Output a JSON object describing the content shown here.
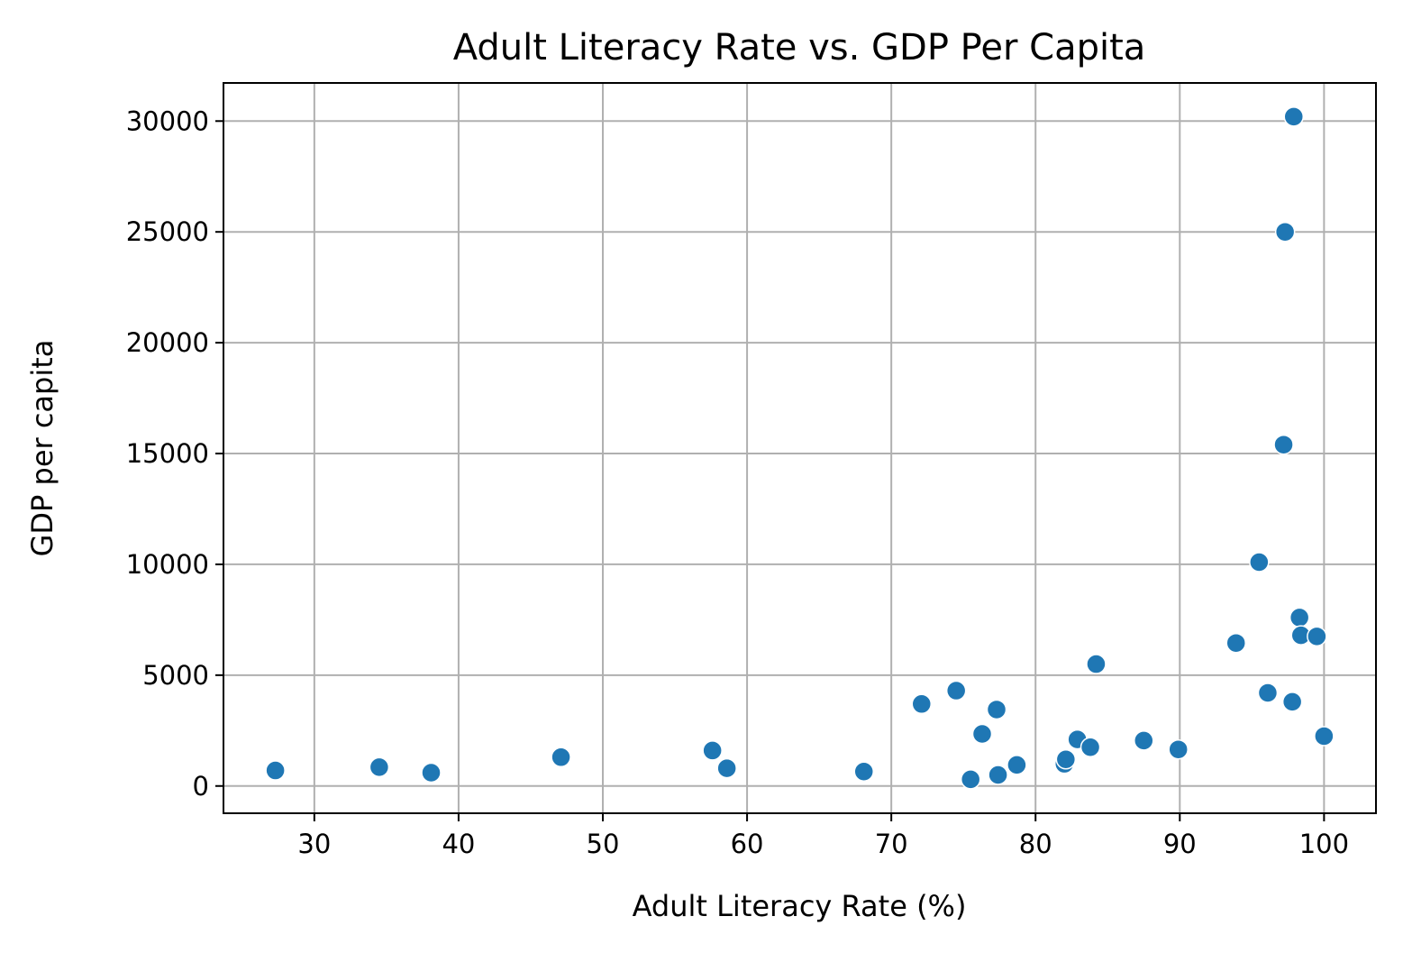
{
  "colors": {
    "point": "#1f77b4",
    "grid": "#b0b0b0",
    "axes": "#000000",
    "background": "#ffffff"
  },
  "chart_data": {
    "type": "scatter",
    "title": "Adult Literacy Rate vs. GDP Per Capita",
    "xlabel": "Adult Literacy Rate (%)",
    "ylabel": "GDP per capita",
    "xlim": [
      23.7,
      103.6
    ],
    "ylim": [
      -1230,
      31720
    ],
    "xticks": [
      30,
      40,
      50,
      60,
      70,
      80,
      90,
      100
    ],
    "yticks": [
      0,
      5000,
      10000,
      15000,
      20000,
      25000,
      30000
    ],
    "grid": true,
    "legend": "none",
    "points": [
      {
        "x": 27.3,
        "y": 700
      },
      {
        "x": 34.5,
        "y": 850
      },
      {
        "x": 38.1,
        "y": 600
      },
      {
        "x": 47.1,
        "y": 1300
      },
      {
        "x": 57.6,
        "y": 1600
      },
      {
        "x": 58.6,
        "y": 800
      },
      {
        "x": 68.1,
        "y": 650
      },
      {
        "x": 72.1,
        "y": 3700
      },
      {
        "x": 74.5,
        "y": 4300
      },
      {
        "x": 75.5,
        "y": 300
      },
      {
        "x": 76.3,
        "y": 2350
      },
      {
        "x": 77.3,
        "y": 3450
      },
      {
        "x": 77.4,
        "y": 500
      },
      {
        "x": 78.7,
        "y": 950
      },
      {
        "x": 82.0,
        "y": 1000
      },
      {
        "x": 82.1,
        "y": 1200
      },
      {
        "x": 82.9,
        "y": 2100
      },
      {
        "x": 83.8,
        "y": 1750
      },
      {
        "x": 84.2,
        "y": 5500
      },
      {
        "x": 87.5,
        "y": 2050
      },
      {
        "x": 89.9,
        "y": 1650
      },
      {
        "x": 93.9,
        "y": 6450
      },
      {
        "x": 95.5,
        "y": 10100
      },
      {
        "x": 96.1,
        "y": 4200
      },
      {
        "x": 97.2,
        "y": 15400
      },
      {
        "x": 97.3,
        "y": 25000
      },
      {
        "x": 97.8,
        "y": 3800
      },
      {
        "x": 97.9,
        "y": 30200
      },
      {
        "x": 98.3,
        "y": 7600
      },
      {
        "x": 98.4,
        "y": 6800
      },
      {
        "x": 99.5,
        "y": 6750
      },
      {
        "x": 100.0,
        "y": 2250
      }
    ]
  }
}
